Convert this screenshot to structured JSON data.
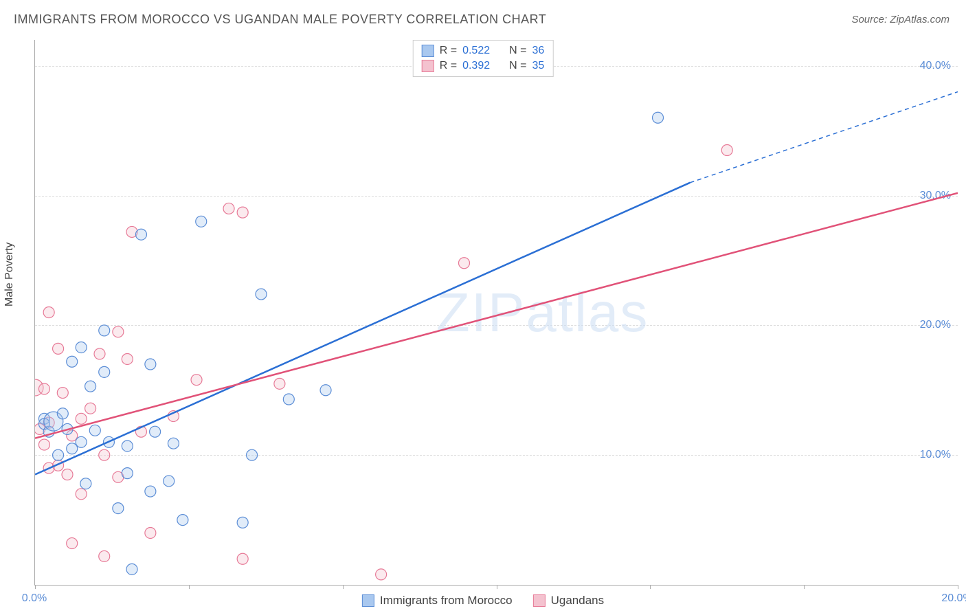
{
  "title": "IMMIGRANTS FROM MOROCCO VS UGANDAN MALE POVERTY CORRELATION CHART",
  "source": "Source: ZipAtlas.com",
  "y_axis_label": "Male Poverty",
  "watermark": {
    "bold": "ZIP",
    "thin": "atlas"
  },
  "chart": {
    "type": "scatter-with-regression",
    "xlim": [
      0,
      20
    ],
    "ylim": [
      0,
      42
    ],
    "x_ticks": [
      0,
      20
    ],
    "x_tick_labels": [
      "0.0%",
      "20.0%"
    ],
    "y_ticks": [
      10,
      20,
      30,
      40
    ],
    "y_tick_labels": [
      "10.0%",
      "20.0%",
      "30.0%",
      "40.0%"
    ],
    "grid_color": "#dddddd",
    "background_color": "#ffffff",
    "axis_color": "#aaaaaa",
    "tick_label_color": "#5b8dd6",
    "tick_fontsize": 16,
    "marker_radius": 8,
    "marker_radius_large": 14,
    "marker_fill_opacity": 0.35,
    "marker_stroke_width": 1.2,
    "line_stroke_width": 2.5
  },
  "series": [
    {
      "key": "morocco",
      "label": "Immigrants from Morocco",
      "color_fill": "#a9c8ef",
      "color_stroke": "#5b8dd6",
      "line_color": "#2b6fd4",
      "R": "0.522",
      "N": "36",
      "regression": {
        "x1": 0,
        "y1": 8.5,
        "x2": 14.2,
        "y2": 31.0,
        "dash_from_x": 14.2,
        "dash_to_x": 20.0,
        "dash_to_y": 38.0
      },
      "points": [
        [
          0.2,
          12.8
        ],
        [
          0.2,
          12.4
        ],
        [
          0.3,
          11.8
        ],
        [
          0.4,
          12.6,
          14
        ],
        [
          0.5,
          10.0
        ],
        [
          0.6,
          13.2
        ],
        [
          0.7,
          12.0
        ],
        [
          0.8,
          10.5
        ],
        [
          0.8,
          17.2
        ],
        [
          1.0,
          18.3
        ],
        [
          1.0,
          11.0
        ],
        [
          1.1,
          7.8
        ],
        [
          1.2,
          15.3
        ],
        [
          1.3,
          11.9
        ],
        [
          1.5,
          19.6
        ],
        [
          1.5,
          16.4
        ],
        [
          1.6,
          11.0
        ],
        [
          1.8,
          5.9
        ],
        [
          2.0,
          8.6
        ],
        [
          2.0,
          10.7
        ],
        [
          2.1,
          1.2
        ],
        [
          2.3,
          27.0
        ],
        [
          2.5,
          17.0
        ],
        [
          2.5,
          7.2
        ],
        [
          2.6,
          11.8
        ],
        [
          2.9,
          8.0
        ],
        [
          3.0,
          10.9
        ],
        [
          3.2,
          5.0
        ],
        [
          3.6,
          28.0
        ],
        [
          4.5,
          4.8
        ],
        [
          4.7,
          10.0
        ],
        [
          4.9,
          22.4
        ],
        [
          5.5,
          14.3
        ],
        [
          6.3,
          15.0
        ],
        [
          13.5,
          36.0
        ]
      ]
    },
    {
      "key": "uganda",
      "label": "Ugandans",
      "color_fill": "#f4c2cf",
      "color_stroke": "#e77a97",
      "line_color": "#e15278",
      "R": "0.392",
      "N": "35",
      "regression": {
        "x1": 0,
        "y1": 11.3,
        "x2": 20.0,
        "y2": 30.2
      },
      "points": [
        [
          0.0,
          15.2,
          12
        ],
        [
          0.1,
          12.0
        ],
        [
          0.2,
          15.1
        ],
        [
          0.2,
          10.8
        ],
        [
          0.3,
          9.0
        ],
        [
          0.3,
          12.5
        ],
        [
          0.3,
          21.0
        ],
        [
          0.5,
          18.2
        ],
        [
          0.5,
          9.2
        ],
        [
          0.6,
          14.8
        ],
        [
          0.7,
          8.5
        ],
        [
          0.8,
          11.5
        ],
        [
          0.8,
          3.2
        ],
        [
          1.0,
          7.0
        ],
        [
          1.0,
          12.8
        ],
        [
          1.2,
          13.6
        ],
        [
          1.4,
          17.8
        ],
        [
          1.5,
          10.0
        ],
        [
          1.5,
          2.2
        ],
        [
          1.8,
          19.5
        ],
        [
          1.8,
          8.3
        ],
        [
          2.0,
          17.4
        ],
        [
          2.1,
          27.2
        ],
        [
          2.3,
          11.8
        ],
        [
          2.5,
          4.0
        ],
        [
          3.0,
          13.0
        ],
        [
          3.5,
          15.8
        ],
        [
          4.2,
          29.0
        ],
        [
          4.5,
          2.0
        ],
        [
          4.5,
          28.7
        ],
        [
          5.3,
          15.5
        ],
        [
          7.5,
          0.8
        ],
        [
          9.3,
          24.8
        ],
        [
          15.0,
          33.5
        ]
      ]
    }
  ],
  "legend_top_labels": {
    "R_prefix": "R = ",
    "N_prefix": "N = "
  }
}
